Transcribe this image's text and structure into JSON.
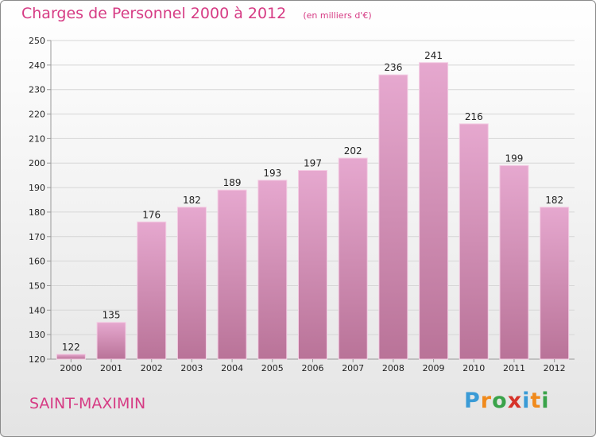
{
  "header": {
    "title": "Charges de Personnel 2000 à 2012",
    "subtitle": "(en milliers d'€)"
  },
  "footer": {
    "town": "SAINT-MAXIMIN",
    "logo": {
      "letters": [
        "P",
        "r",
        "o",
        "x",
        "i",
        "t",
        "i"
      ],
      "colors": [
        "#3a9bd6",
        "#f08a1c",
        "#3aa34a",
        "#d6332a",
        "#3a9bd6",
        "#f08a1c",
        "#3aa34a"
      ]
    }
  },
  "chart_data": {
    "type": "bar",
    "title": "Charges de Personnel 2000 à 2012",
    "subtitle": "(en milliers d'€)",
    "categories": [
      "2000",
      "2001",
      "2002",
      "2003",
      "2004",
      "2005",
      "2006",
      "2007",
      "2008",
      "2009",
      "2010",
      "2011",
      "2012"
    ],
    "values": [
      122,
      135,
      176,
      182,
      189,
      193,
      197,
      202,
      236,
      241,
      216,
      199,
      182
    ],
    "ylim": [
      120,
      250
    ],
    "yticks": [
      120,
      130,
      140,
      150,
      160,
      170,
      180,
      190,
      200,
      210,
      220,
      230,
      240,
      250
    ],
    "grid": true,
    "colors": {
      "bar_top": "#e6a8cf",
      "bar_bottom": "#b97398",
      "bar_edge": "#f4cde4",
      "text": "#222222",
      "axis": "#999999",
      "grid": "#d6d6d6"
    }
  }
}
